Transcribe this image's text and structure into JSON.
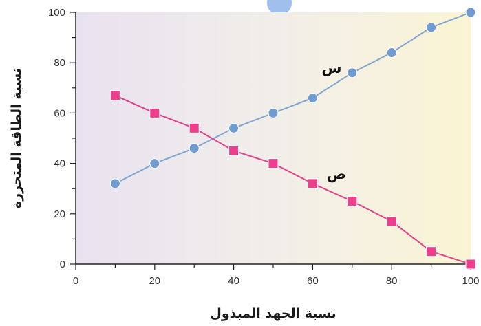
{
  "chart_data": {
    "type": "line",
    "xlabel": "نسبة الجهد المبذول",
    "ylabel": "نسبة الطاقة المتحررة",
    "xlim": [
      0,
      100
    ],
    "ylim": [
      0,
      100
    ],
    "x_ticks": [
      "0",
      "20",
      "40",
      "60",
      "80",
      "100"
    ],
    "y_ticks": [
      "0",
      "20",
      "40",
      "60",
      "80",
      "100"
    ],
    "grid": false,
    "background": "gradient lavender to pale yellow",
    "series": [
      {
        "name": "س",
        "marker": "circle",
        "color": "#6f9bd1",
        "line_color": "#7fa6cf",
        "x": [
          10,
          20,
          30,
          40,
          50,
          60,
          70,
          80,
          90,
          100
        ],
        "y": [
          32,
          40,
          46,
          54,
          60,
          66,
          76,
          84,
          94,
          100
        ]
      },
      {
        "name": "ص",
        "marker": "square",
        "color": "#ee3f8c",
        "line_color": "#e0418a",
        "x": [
          10,
          20,
          30,
          40,
          50,
          60,
          70,
          80,
          90,
          100
        ],
        "y": [
          67,
          60,
          54,
          45,
          40,
          32,
          25,
          17,
          5,
          0
        ]
      }
    ]
  }
}
